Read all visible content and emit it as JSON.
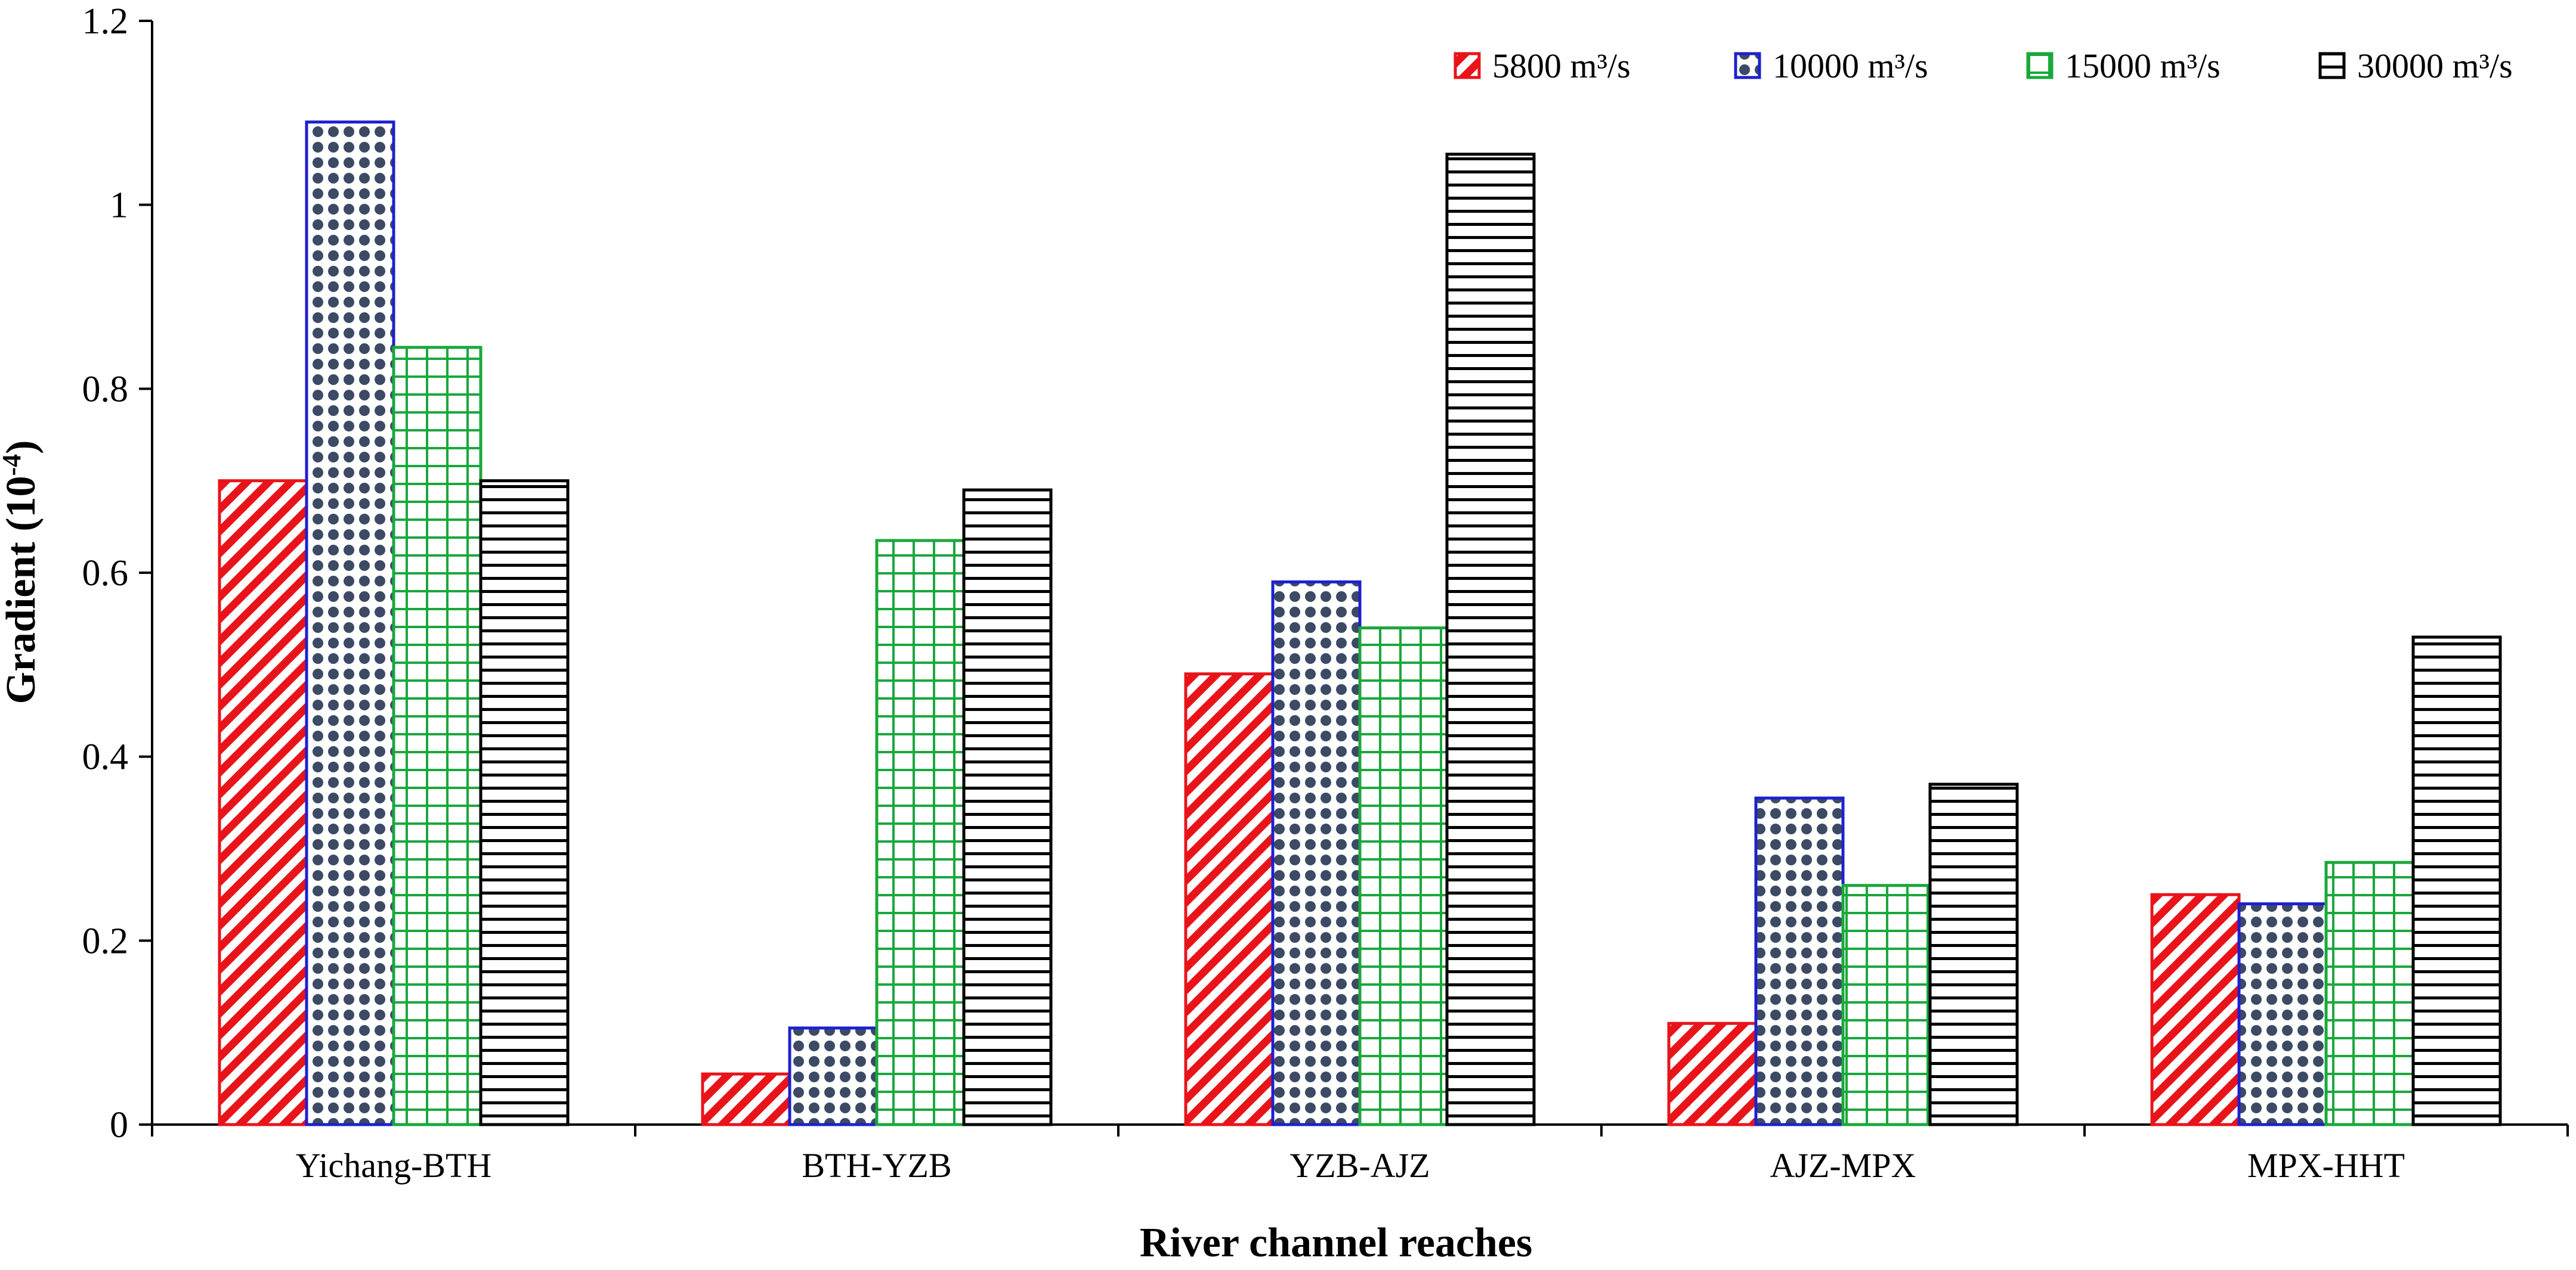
{
  "chart_data": {
    "type": "bar",
    "xlabel": "River channel reaches",
    "ylabel": "Gradient (10",
    "ylabel_superscript": "-4",
    "ylabel_suffix": ")",
    "ylim": [
      0,
      1.2
    ],
    "yticks": [
      "0",
      "0.2",
      "0.4",
      "0.6",
      "0.8",
      "1",
      "1.2"
    ],
    "categories": [
      "Yichang-BTH",
      "BTH-YZB",
      "YZB-AJZ",
      "AJZ-MPX",
      "MPX-HHT"
    ],
    "series": [
      {
        "name": "5800 m³/s",
        "values": [
          0.7,
          0.055,
          0.49,
          0.11,
          0.25
        ],
        "pattern": "diagonal",
        "color": "#e8141a"
      },
      {
        "name": "10000 m³/s",
        "values": [
          1.09,
          0.105,
          0.59,
          0.355,
          0.24
        ],
        "pattern": "dots",
        "color": "#1f1fcf"
      },
      {
        "name": "15000 m³/s",
        "values": [
          0.845,
          0.635,
          0.54,
          0.26,
          0.285
        ],
        "pattern": "grid",
        "color": "#1aa83c"
      },
      {
        "name": "30000 m³/s",
        "values": [
          0.7,
          0.69,
          1.055,
          0.37,
          0.53
        ],
        "pattern": "horizontal",
        "color": "#000000"
      }
    ],
    "legend_position": "top-right",
    "grid": false
  }
}
